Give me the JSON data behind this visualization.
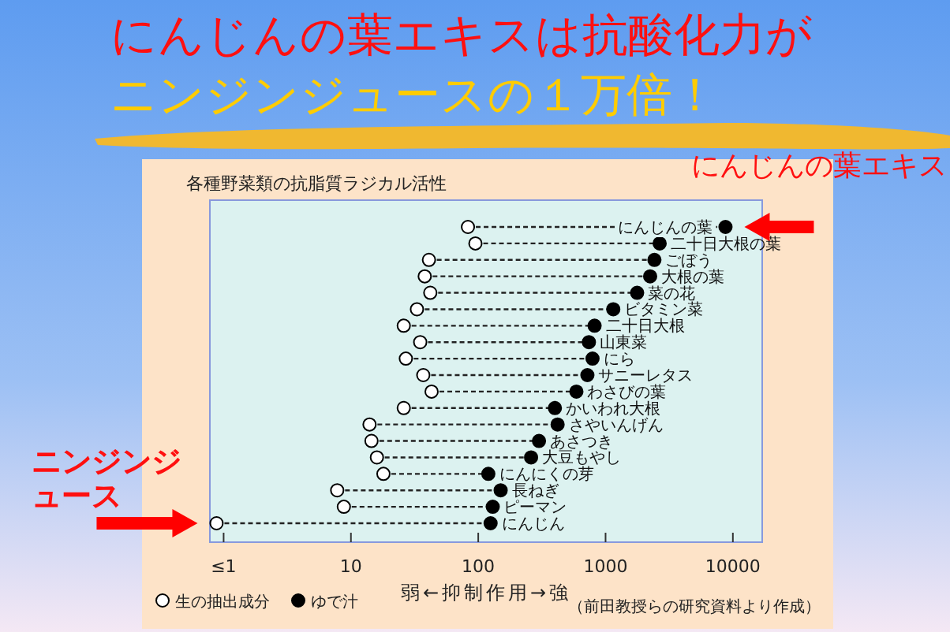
{
  "chart_data": {
    "type": "scatter",
    "orientation": "horizontal",
    "log": "x",
    "title": "にんじんの葉エキスは抗酸化力が",
    "subtitle": "ニンジンジュースの１万倍！",
    "xlabel": "弱←抑制作用→強",
    "categories": [
      "にんじんの葉",
      "二十日大根の葉",
      "ごぼう",
      "大根の葉",
      "菜の花",
      "ビタミン菜",
      "二十日大根",
      "山東菜",
      "にら",
      "サニーレタス",
      "わさびの葉",
      "かいわれ大根",
      "さやいんげん",
      "あさつき",
      "大豆もやし",
      "にんにくの芽",
      "長ねぎ",
      "ピーマン",
      "にんじん"
    ],
    "series": [
      {
        "name": "生の抽出成分",
        "color": "#ffffff",
        "values": [
          83,
          95,
          41,
          38,
          42,
          33,
          26,
          35,
          27,
          37,
          43,
          26,
          14,
          14.5,
          16,
          18,
          7.8,
          8.8,
          0.88
        ]
      },
      {
        "name": "ゆで汁",
        "color": "#000000",
        "values": [
          8750,
          2660,
          2420,
          2240,
          1770,
          1150,
          820,
          740,
          790,
          720,
          590,
          400,
          420,
          300,
          260,
          120,
          150,
          130,
          125
        ]
      }
    ],
    "marker": "circle",
    "line_style": "dashed",
    "grid": false,
    "legend": "bottom left",
    "xlim": [
      0.78,
      17000
    ],
    "xticks": [
      {
        "value": 1,
        "label": "≤1"
      },
      10,
      100,
      1000,
      10000
    ],
    "annotations": [
      "各種野菜類の抗脂質ラジカル活性",
      "（前田教授らの研究資料より作成）",
      {
        "text": "にんじんの葉エキス",
        "x": 8750,
        "y": "にんじんの葉"
      },
      {
        "text": "ニンジンジュース",
        "x": 0.88,
        "y": "にんじん"
      }
    ]
  }
}
